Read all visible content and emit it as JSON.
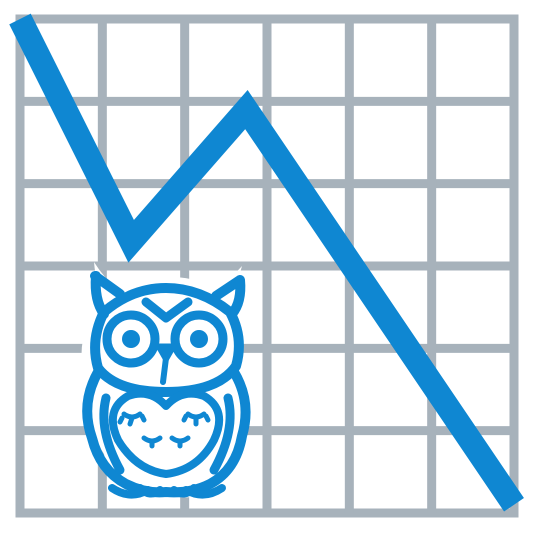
{
  "icon": "owl-with-declining-chart-icon",
  "colors": {
    "background": "#ffffff",
    "grid": "#a7b2bb",
    "accent": "#0f87d2"
  },
  "chart_data": {
    "type": "line",
    "grid": true,
    "x": [
      0,
      1.35,
      2.75,
      6
    ],
    "values": [
      6,
      3.3,
      4.9,
      0.1
    ],
    "ylim": [
      0,
      6
    ],
    "xlim": [
      0,
      6
    ]
  }
}
